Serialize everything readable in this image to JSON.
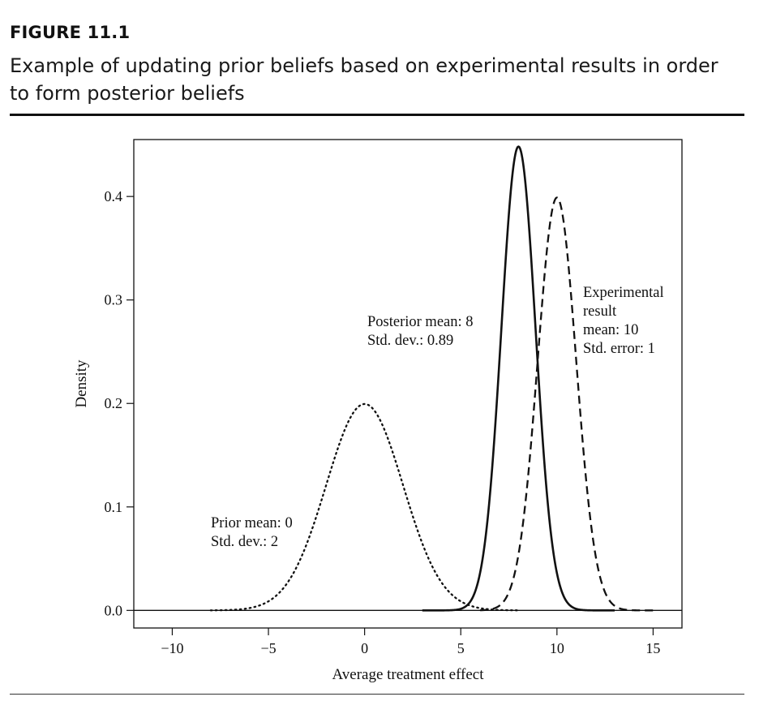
{
  "figure": {
    "label": "FIGURE 11.1",
    "caption": "Example of updating prior beliefs based on experimental results in order to form posterior beliefs"
  },
  "chart_data": {
    "type": "line",
    "title": "",
    "xlabel": "Average treatment effect",
    "ylabel": "Density",
    "xlim": [
      -12,
      16.5
    ],
    "ylim": [
      -0.017,
      0.455
    ],
    "xticks": [
      -10,
      -5,
      0,
      5,
      10,
      15
    ],
    "yticks": [
      0.0,
      0.1,
      0.2,
      0.3,
      0.4
    ],
    "xtick_labels": [
      "−10",
      "−5",
      "0",
      "5",
      "10",
      "15"
    ],
    "ytick_labels": [
      "0.0",
      "0.1",
      "0.2",
      "0.3",
      "0.4"
    ],
    "series": [
      {
        "key": "prior",
        "style": "dotted",
        "mean": 0,
        "sd": 2,
        "x_range": [
          -8,
          8
        ]
      },
      {
        "key": "posterior",
        "style": "solid",
        "mean": 8,
        "sd": 0.89,
        "x_range": [
          3,
          13
        ]
      },
      {
        "key": "experimental",
        "style": "dashed",
        "mean": 10,
        "sd": 1,
        "x_range": [
          6,
          15
        ]
      }
    ],
    "annotations": [
      {
        "key": "prior",
        "lines": [
          "Prior mean: 0",
          "Std. dev.: 2"
        ]
      },
      {
        "key": "posterior",
        "lines": [
          "Posterior mean: 8",
          "Std. dev.: 0.89"
        ]
      },
      {
        "key": "experimental",
        "lines": [
          "Experimental",
          "result",
          "mean: 10",
          "Std. error: 1"
        ]
      }
    ],
    "baseline": 0,
    "grid": false,
    "legend": "none"
  }
}
